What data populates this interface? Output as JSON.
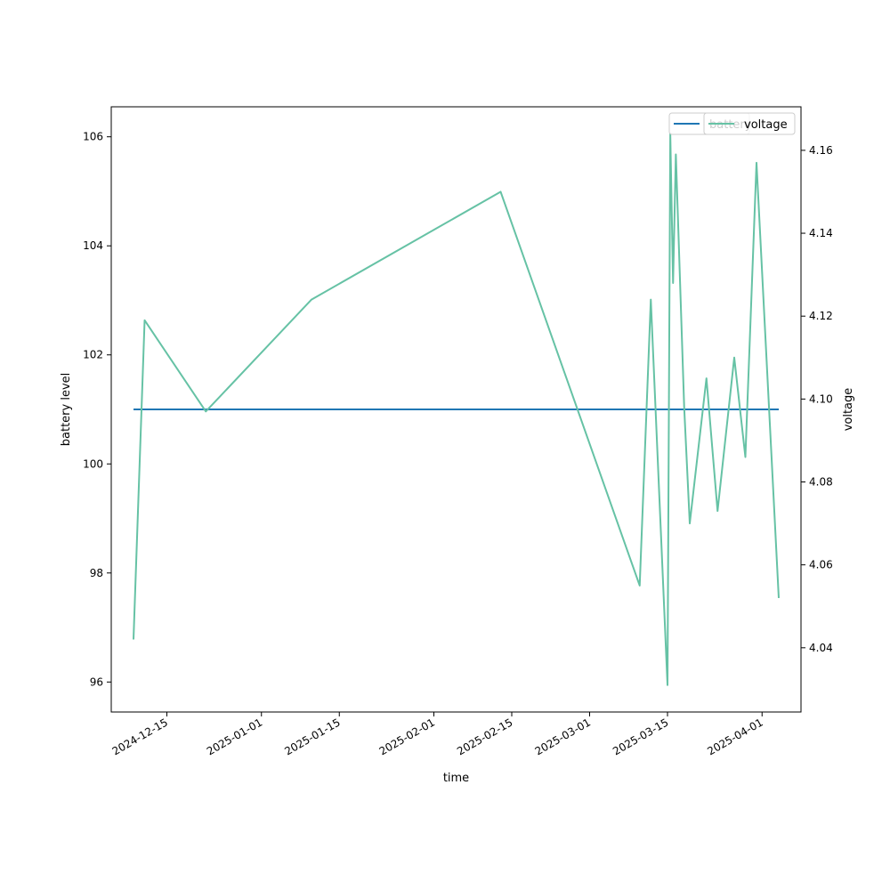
{
  "chart_data": {
    "type": "line",
    "xlabel": "time",
    "ylabel_left": "battery level",
    "ylabel_right": "voltage",
    "x_axis_type": "date",
    "xlim": [
      "2024-12-05",
      "2025-04-08"
    ],
    "ylim_left": [
      95.45,
      106.55
    ],
    "ylim_right": [
      4.0245,
      4.1705
    ],
    "x_ticks": [
      "2024-12-15",
      "2025-01-01",
      "2025-01-15",
      "2025-02-01",
      "2025-02-15",
      "2025-03-01",
      "2025-03-15",
      "2025-04-01"
    ],
    "y_ticks_left": [
      96,
      98,
      100,
      102,
      104,
      106
    ],
    "y_ticks_right": [
      4.04,
      4.06,
      4.08,
      4.1,
      4.12,
      4.14,
      4.16
    ],
    "y_tick_labels_left": [
      "96",
      "98",
      "100",
      "102",
      "104",
      "106"
    ],
    "y_tick_labels_right": [
      "4.04",
      "4.06",
      "4.08",
      "4.10",
      "4.12",
      "4.14",
      "4.16"
    ],
    "grid": false,
    "legend_placement": "top-right",
    "legend_labels_overlap": true,
    "series": [
      {
        "name": "battery",
        "axis": "left",
        "color": "#1f77b4",
        "points": [
          {
            "x": "2024-12-09",
            "y": 101
          },
          {
            "x": "2025-04-04",
            "y": 101
          }
        ]
      },
      {
        "name": "voltage",
        "axis": "right",
        "color": "#66c2a5",
        "points": [
          {
            "x": "2024-12-09",
            "y": 4.042
          },
          {
            "x": "2024-12-11",
            "y": 4.119
          },
          {
            "x": "2024-12-22",
            "y": 4.097
          },
          {
            "x": "2025-01-10",
            "y": 4.124
          },
          {
            "x": "2025-02-13",
            "y": 4.15
          },
          {
            "x": "2025-03-10",
            "y": 4.055
          },
          {
            "x": "2025-03-12",
            "y": 4.124
          },
          {
            "x": "2025-03-15",
            "y": 4.031
          },
          {
            "x": "2025-03-15 12:00",
            "y": 4.164
          },
          {
            "x": "2025-03-16",
            "y": 4.128
          },
          {
            "x": "2025-03-16 12:00",
            "y": 4.159
          },
          {
            "x": "2025-03-18",
            "y": 4.098
          },
          {
            "x": "2025-03-19",
            "y": 4.07
          },
          {
            "x": "2025-03-22",
            "y": 4.105
          },
          {
            "x": "2025-03-24",
            "y": 4.073
          },
          {
            "x": "2025-03-27",
            "y": 4.11
          },
          {
            "x": "2025-03-29",
            "y": 4.086
          },
          {
            "x": "2025-03-31",
            "y": 4.157
          },
          {
            "x": "2025-04-04",
            "y": 4.052
          }
        ]
      }
    ]
  }
}
